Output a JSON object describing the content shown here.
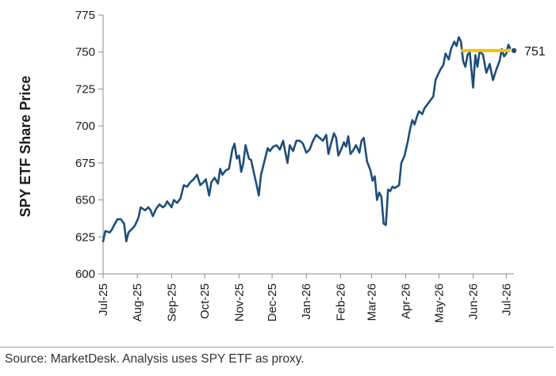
{
  "chart_data": {
    "type": "line",
    "title": "",
    "xlabel": "",
    "ylabel": "SPY ETF Share Price",
    "ylim": [
      600,
      775
    ],
    "yticks": [
      600,
      625,
      650,
      675,
      700,
      725,
      750,
      775
    ],
    "xlim": [
      "2025-07-01",
      "2026-07-08"
    ],
    "x_tick_labels": [
      {
        "date": "2025-07-01",
        "label": "Jul-25"
      },
      {
        "date": "2025-08-01",
        "label": "Aug-25"
      },
      {
        "date": "2025-09-01",
        "label": "Sep-25"
      },
      {
        "date": "2025-10-01",
        "label": "Oct-25"
      },
      {
        "date": "2025-11-01",
        "label": "Nov-25"
      },
      {
        "date": "2025-12-01",
        "label": "Dec-25"
      },
      {
        "date": "2026-01-01",
        "label": "Jan-26"
      },
      {
        "date": "2026-02-01",
        "label": "Feb-26"
      },
      {
        "date": "2026-03-01",
        "label": "Mar-26"
      },
      {
        "date": "2026-04-01",
        "label": "Apr-26"
      },
      {
        "date": "2026-05-01",
        "label": "May-26"
      },
      {
        "date": "2026-06-01",
        "label": "Jun-26"
      },
      {
        "date": "2026-07-01",
        "label": "Jul-26"
      }
    ],
    "grid": false,
    "series": [
      {
        "color": "#1f4e79",
        "points": [
          [
            "2025-07-01",
            622
          ],
          [
            "2025-07-03",
            629
          ],
          [
            "2025-07-07",
            628
          ],
          [
            "2025-07-09",
            630
          ],
          [
            "2025-07-11",
            633
          ],
          [
            "2025-07-14",
            637
          ],
          [
            "2025-07-17",
            637
          ],
          [
            "2025-07-20",
            634
          ],
          [
            "2025-07-22",
            622
          ],
          [
            "2025-07-24",
            628
          ],
          [
            "2025-07-28",
            631
          ],
          [
            "2025-07-30",
            633
          ],
          [
            "2025-08-02",
            638
          ],
          [
            "2025-08-04",
            645
          ],
          [
            "2025-08-06",
            644
          ],
          [
            "2025-08-08",
            643
          ],
          [
            "2025-08-11",
            645
          ],
          [
            "2025-08-13",
            643
          ],
          [
            "2025-08-15",
            639
          ],
          [
            "2025-08-18",
            644
          ],
          [
            "2025-08-21",
            647
          ],
          [
            "2025-08-24",
            645
          ],
          [
            "2025-08-26",
            646
          ],
          [
            "2025-08-28",
            649
          ],
          [
            "2025-09-01",
            645
          ],
          [
            "2025-09-03",
            650
          ],
          [
            "2025-09-06",
            648
          ],
          [
            "2025-09-09",
            651
          ],
          [
            "2025-09-12",
            660
          ],
          [
            "2025-09-15",
            659
          ],
          [
            "2025-09-18",
            662
          ],
          [
            "2025-09-21",
            664
          ],
          [
            "2025-09-24",
            667
          ],
          [
            "2025-09-27",
            660
          ],
          [
            "2025-09-30",
            662
          ],
          [
            "2025-10-02",
            664
          ],
          [
            "2025-10-05",
            653
          ],
          [
            "2025-10-07",
            662
          ],
          [
            "2025-10-10",
            665
          ],
          [
            "2025-10-13",
            661
          ],
          [
            "2025-10-15",
            671
          ],
          [
            "2025-10-17",
            667
          ],
          [
            "2025-10-20",
            670
          ],
          [
            "2025-10-23",
            671
          ],
          [
            "2025-10-26",
            684
          ],
          [
            "2025-10-28",
            688
          ],
          [
            "2025-10-30",
            678
          ],
          [
            "2025-11-01",
            680
          ],
          [
            "2025-11-03",
            669
          ],
          [
            "2025-11-05",
            675
          ],
          [
            "2025-11-07",
            687
          ],
          [
            "2025-11-10",
            678
          ],
          [
            "2025-11-12",
            677
          ],
          [
            "2025-11-14",
            670
          ],
          [
            "2025-11-17",
            660
          ],
          [
            "2025-11-19",
            653
          ],
          [
            "2025-11-21",
            667
          ],
          [
            "2025-11-24",
            676
          ],
          [
            "2025-11-27",
            685
          ],
          [
            "2025-11-29",
            683
          ],
          [
            "2025-12-02",
            686
          ],
          [
            "2025-12-05",
            687
          ],
          [
            "2025-12-08",
            684
          ],
          [
            "2025-12-11",
            690
          ],
          [
            "2025-12-13",
            682
          ],
          [
            "2025-12-15",
            675
          ],
          [
            "2025-12-17",
            687
          ],
          [
            "2025-12-20",
            683
          ],
          [
            "2025-12-23",
            690
          ],
          [
            "2025-12-26",
            690
          ],
          [
            "2025-12-29",
            688
          ],
          [
            "2026-01-01",
            682
          ],
          [
            "2026-01-04",
            684
          ],
          [
            "2026-01-07",
            690
          ],
          [
            "2026-01-10",
            694
          ],
          [
            "2026-01-13",
            692
          ],
          [
            "2026-01-16",
            690
          ],
          [
            "2026-01-19",
            694
          ],
          [
            "2026-01-21",
            681
          ],
          [
            "2026-01-23",
            687
          ],
          [
            "2026-01-26",
            695
          ],
          [
            "2026-01-28",
            692
          ],
          [
            "2026-01-30",
            680
          ],
          [
            "2026-02-02",
            685
          ],
          [
            "2026-02-04",
            689
          ],
          [
            "2026-02-06",
            686
          ],
          [
            "2026-02-08",
            693
          ],
          [
            "2026-02-10",
            681
          ],
          [
            "2026-02-12",
            683
          ],
          [
            "2026-02-15",
            687
          ],
          [
            "2026-02-18",
            682
          ],
          [
            "2026-02-20",
            690
          ],
          [
            "2026-02-22",
            692
          ],
          [
            "2026-02-25",
            676
          ],
          [
            "2026-02-28",
            670
          ],
          [
            "2026-03-02",
            663
          ],
          [
            "2026-03-04",
            666
          ],
          [
            "2026-03-06",
            650
          ],
          [
            "2026-03-08",
            655
          ],
          [
            "2026-03-10",
            652
          ],
          [
            "2026-03-12",
            634
          ],
          [
            "2026-03-14",
            633
          ],
          [
            "2026-03-16",
            657
          ],
          [
            "2026-03-18",
            656
          ],
          [
            "2026-03-20",
            659
          ],
          [
            "2026-03-22",
            658
          ],
          [
            "2026-03-24",
            659
          ],
          [
            "2026-03-26",
            660
          ],
          [
            "2026-03-28",
            675
          ],
          [
            "2026-03-31",
            680
          ],
          [
            "2026-04-03",
            690
          ],
          [
            "2026-04-05",
            698
          ],
          [
            "2026-04-07",
            704
          ],
          [
            "2026-04-09",
            701
          ],
          [
            "2026-04-11",
            706
          ],
          [
            "2026-04-13",
            710
          ],
          [
            "2026-04-16",
            708
          ],
          [
            "2026-04-18",
            712
          ],
          [
            "2026-04-21",
            715
          ],
          [
            "2026-04-24",
            718
          ],
          [
            "2026-04-26",
            720
          ],
          [
            "2026-04-28",
            731
          ],
          [
            "2026-05-01",
            736
          ],
          [
            "2026-05-03",
            739
          ],
          [
            "2026-05-05",
            741
          ],
          [
            "2026-05-07",
            749
          ],
          [
            "2026-05-10",
            745
          ],
          [
            "2026-05-12",
            752
          ],
          [
            "2026-05-15",
            757
          ],
          [
            "2026-05-17",
            754
          ],
          [
            "2026-05-19",
            760
          ],
          [
            "2026-05-21",
            757
          ],
          [
            "2026-05-23",
            744
          ],
          [
            "2026-05-25",
            740
          ],
          [
            "2026-05-27",
            748
          ],
          [
            "2026-05-29",
            750
          ],
          [
            "2026-06-01",
            726
          ],
          [
            "2026-06-03",
            748
          ],
          [
            "2026-06-05",
            740
          ],
          [
            "2026-06-07",
            751
          ],
          [
            "2026-06-10",
            748
          ],
          [
            "2026-06-13",
            736
          ],
          [
            "2026-06-16",
            742
          ],
          [
            "2026-06-19",
            731
          ],
          [
            "2026-06-22",
            738
          ],
          [
            "2026-06-25",
            744
          ],
          [
            "2026-06-27",
            752
          ],
          [
            "2026-06-29",
            747
          ],
          [
            "2026-07-01",
            749
          ],
          [
            "2026-07-03",
            755
          ],
          [
            "2026-07-05",
            752
          ],
          [
            "2026-07-08",
            751
          ]
        ]
      }
    ],
    "reference_line": {
      "start": "2026-05-22",
      "end": "2026-07-08",
      "value": 751,
      "color": "#f2c200"
    },
    "end_marker": {
      "date": "2026-07-08",
      "value": 751
    },
    "end_label": "751"
  },
  "footer": {
    "source": "Source: MarketDesk. Analysis uses SPY ETF as proxy."
  }
}
